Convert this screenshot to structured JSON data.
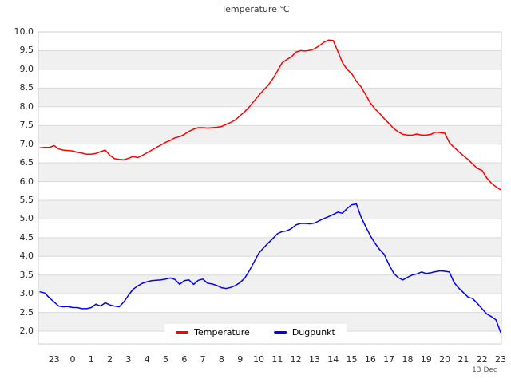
{
  "chart_data": {
    "type": "line",
    "title": "Temperature ℃",
    "date_label": "13 Dec",
    "legend_position": "bottom-center",
    "background_bands": "alternating gray bands every 0.5 units",
    "grid": "horizontal gridlines every 0.5",
    "ylim": [
      1.66,
      10.0
    ],
    "xlim_hours": [
      -1.85,
      23.04
    ],
    "y_ticks": [
      2.0,
      2.5,
      3.0,
      3.5,
      4.0,
      4.5,
      5.0,
      5.5,
      6.0,
      6.5,
      7.0,
      7.5,
      8.0,
      8.5,
      9.0,
      9.5,
      10.0
    ],
    "y_tick_labels": [
      "2.0",
      "2.5",
      "3.0",
      "3.5",
      "4.0",
      "4.5",
      "5.0",
      "5.5",
      "6.0",
      "6.5",
      "7.0",
      "7.5",
      "8.0",
      "8.5",
      "9.0",
      "9.5",
      "10.0"
    ],
    "x_tick_hours": [
      -1,
      0,
      1,
      2,
      3,
      4,
      5,
      6,
      7,
      8,
      9,
      10,
      11,
      12,
      13,
      14,
      15,
      16,
      17,
      18,
      19,
      20,
      21,
      22,
      23
    ],
    "x_tick_labels": [
      "23",
      "0",
      "1",
      "2",
      "3",
      "4",
      "5",
      "6",
      "7",
      "8",
      "9",
      "10",
      "11",
      "12",
      "13",
      "14",
      "15",
      "16",
      "17",
      "18",
      "19",
      "20",
      "21",
      "22",
      "23"
    ],
    "x_hours": [
      -1.75,
      -1.5,
      -1.25,
      -1,
      -0.75,
      -0.5,
      -0.25,
      0,
      0.25,
      0.5,
      0.75,
      1,
      1.25,
      1.5,
      1.75,
      2,
      2.25,
      2.5,
      2.75,
      3,
      3.25,
      3.5,
      3.75,
      4,
      4.25,
      4.5,
      4.75,
      5,
      5.25,
      5.5,
      5.75,
      6,
      6.25,
      6.5,
      6.75,
      7,
      7.25,
      7.5,
      7.75,
      8,
      8.25,
      8.5,
      8.75,
      9,
      9.25,
      9.5,
      9.75,
      10,
      10.25,
      10.5,
      10.75,
      11,
      11.25,
      11.5,
      11.75,
      12,
      12.25,
      12.5,
      12.75,
      13,
      13.25,
      13.5,
      13.75,
      14,
      14.25,
      14.5,
      14.75,
      15,
      15.25,
      15.5,
      15.75,
      16,
      16.25,
      16.5,
      16.75,
      17,
      17.25,
      17.5,
      17.75,
      18,
      18.25,
      18.5,
      18.75,
      19,
      19.25,
      19.5,
      19.75,
      20,
      20.25,
      20.5,
      20.75,
      21,
      21.25,
      21.5,
      21.75,
      22,
      22.25,
      22.5,
      22.75,
      23
    ],
    "series": [
      {
        "name": "Temperature",
        "color": "#ff0000",
        "values": [
          6.9,
          6.91,
          6.91,
          6.96,
          6.87,
          6.84,
          6.83,
          6.82,
          6.78,
          6.76,
          6.73,
          6.73,
          6.75,
          6.8,
          6.84,
          6.7,
          6.61,
          6.59,
          6.58,
          6.62,
          6.67,
          6.64,
          6.7,
          6.77,
          6.84,
          6.91,
          6.98,
          7.05,
          7.1,
          7.17,
          7.2,
          7.26,
          7.34,
          7.4,
          7.44,
          7.44,
          7.43,
          7.44,
          7.45,
          7.47,
          7.53,
          7.58,
          7.65,
          7.76,
          7.87,
          8.0,
          8.15,
          8.3,
          8.44,
          8.57,
          8.74,
          8.95,
          9.17,
          9.26,
          9.33,
          9.46,
          9.5,
          9.49,
          9.51,
          9.55,
          9.63,
          9.72,
          9.78,
          9.77,
          9.48,
          9.18,
          9.0,
          8.88,
          8.68,
          8.53,
          8.32,
          8.1,
          7.94,
          7.82,
          7.68,
          7.55,
          7.42,
          7.33,
          7.26,
          7.24,
          7.24,
          7.27,
          7.24,
          7.24,
          7.26,
          7.32,
          7.31,
          7.29,
          7.04,
          6.91,
          6.8,
          6.69,
          6.59,
          6.47,
          6.35,
          6.3,
          6.1,
          5.96,
          5.86,
          5.78
        ]
      },
      {
        "name": "Dugpunkt",
        "color": "#0000ff",
        "values": [
          3.05,
          3.02,
          2.89,
          2.78,
          2.67,
          2.65,
          2.66,
          2.63,
          2.63,
          2.6,
          2.6,
          2.63,
          2.72,
          2.67,
          2.76,
          2.7,
          2.67,
          2.65,
          2.78,
          2.96,
          3.12,
          3.21,
          3.28,
          3.32,
          3.35,
          3.36,
          3.37,
          3.39,
          3.42,
          3.38,
          3.25,
          3.35,
          3.37,
          3.25,
          3.36,
          3.39,
          3.28,
          3.26,
          3.22,
          3.16,
          3.14,
          3.17,
          3.22,
          3.3,
          3.42,
          3.62,
          3.85,
          4.08,
          4.22,
          4.35,
          4.47,
          4.6,
          4.66,
          4.68,
          4.74,
          4.84,
          4.88,
          4.88,
          4.87,
          4.89,
          4.95,
          5.01,
          5.06,
          5.12,
          5.18,
          5.15,
          5.28,
          5.38,
          5.4,
          5.05,
          4.8,
          4.55,
          4.35,
          4.18,
          4.05,
          3.78,
          3.55,
          3.43,
          3.37,
          3.44,
          3.5,
          3.53,
          3.58,
          3.54,
          3.56,
          3.59,
          3.61,
          3.6,
          3.58,
          3.3,
          3.15,
          3.03,
          2.91,
          2.87,
          2.74,
          2.6,
          2.46,
          2.39,
          2.3,
          1.97
        ]
      }
    ],
    "colors": {
      "band_fill": "#f0f0f0",
      "gridline": "#d9d9d9",
      "plot_border": "#cfcfcf",
      "temperature_line": "#ff0000",
      "dugpunkt_line": "#0000ff"
    }
  }
}
